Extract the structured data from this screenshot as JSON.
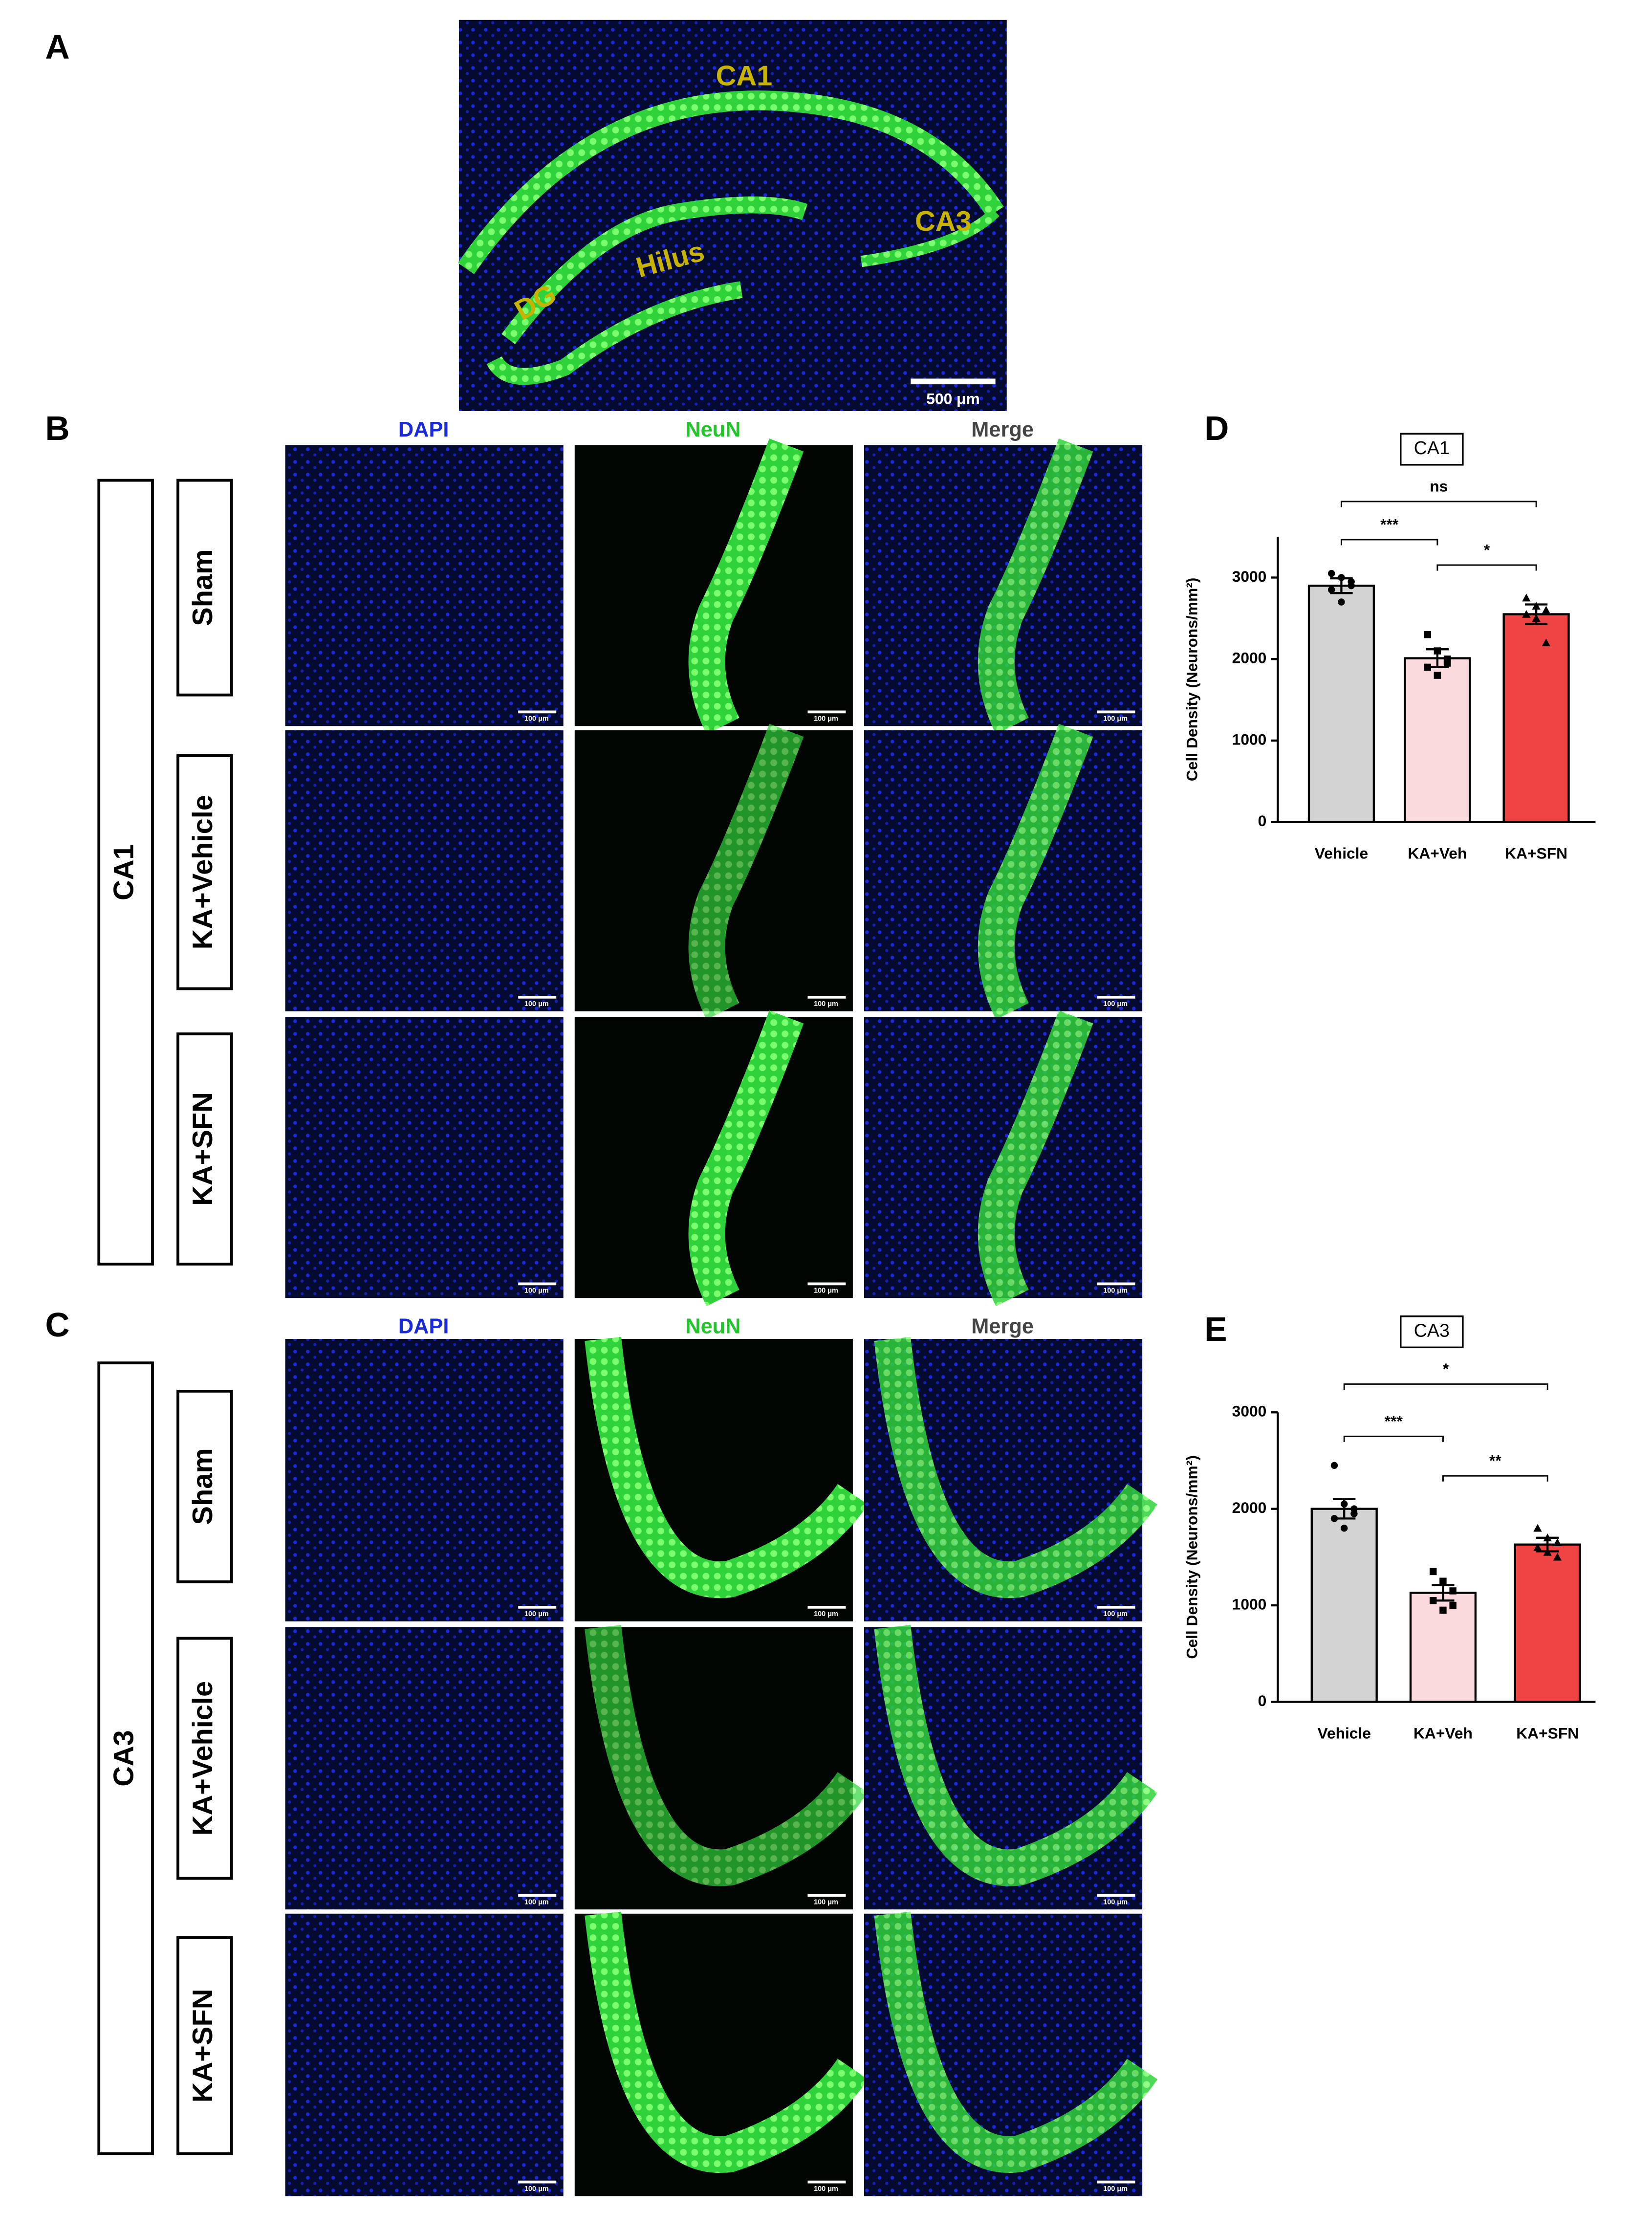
{
  "panel_a": {
    "label": "A",
    "regions": [
      "CA1",
      "CA3",
      "DG",
      "Hilus"
    ],
    "scale_bar": "500 μm"
  },
  "panel_b": {
    "label": "B",
    "region": "CA1",
    "columns": [
      "DAPI",
      "NeuN",
      "Merge"
    ],
    "rows": [
      "Sham",
      "KA+Vehicle",
      "KA+SFN"
    ],
    "scale_bar": "100 μm"
  },
  "panel_c": {
    "label": "C",
    "region": "CA3",
    "columns": [
      "DAPI",
      "NeuN",
      "Merge"
    ],
    "rows": [
      "Sham",
      "KA+Vehicle",
      "KA+SFN"
    ],
    "scale_bar": "100 μm"
  },
  "chart_data": [
    {
      "type": "bar",
      "panel_label": "D",
      "title": "CA1",
      "y_label": "Cell Density (Neurons/mm²)",
      "categories": [
        "Vehicle",
        "KA+Veh",
        "KA+SFN"
      ],
      "values": [
        2900,
        2010,
        2550
      ],
      "errors": [
        90,
        110,
        120
      ],
      "points": [
        [
          3050,
          3000,
          2900,
          2850,
          2700,
          2950
        ],
        [
          2300,
          2100,
          1950,
          1900,
          1800,
          2000
        ],
        [
          2750,
          2650,
          2600,
          2550,
          2500,
          2200
        ]
      ],
      "colors": [
        "#d3d3d3",
        "#fadadd",
        "#f04444"
      ],
      "ylim": [
        0,
        3500
      ],
      "yticks": [
        0,
        1000,
        2000,
        3000
      ],
      "brackets": [
        {
          "pair": [
            0,
            2
          ],
          "label": "ns"
        },
        {
          "pair": [
            0,
            1
          ],
          "label": "***"
        },
        {
          "pair": [
            1,
            2
          ],
          "label": "*"
        }
      ]
    },
    {
      "type": "bar",
      "panel_label": "E",
      "title": "CA3",
      "y_label": "Cell Density (Neurons/mm²)",
      "categories": [
        "Vehicle",
        "KA+Veh",
        "KA+SFN"
      ],
      "values": [
        2000,
        1130,
        1630
      ],
      "errors": [
        100,
        80,
        70
      ],
      "points": [
        [
          2450,
          2050,
          1950,
          1900,
          1800,
          2000
        ],
        [
          1350,
          1250,
          1150,
          1050,
          950,
          1000
        ],
        [
          1800,
          1700,
          1650,
          1600,
          1550,
          1500
        ]
      ],
      "colors": [
        "#d3d3d3",
        "#fadadd",
        "#f04444"
      ],
      "ylim": [
        0,
        3000
      ],
      "yticks": [
        0,
        1000,
        2000,
        3000
      ],
      "brackets": [
        {
          "pair": [
            0,
            2
          ],
          "label": "*"
        },
        {
          "pair": [
            0,
            1
          ],
          "label": "***"
        },
        {
          "pair": [
            1,
            2
          ],
          "label": "**"
        }
      ]
    }
  ]
}
